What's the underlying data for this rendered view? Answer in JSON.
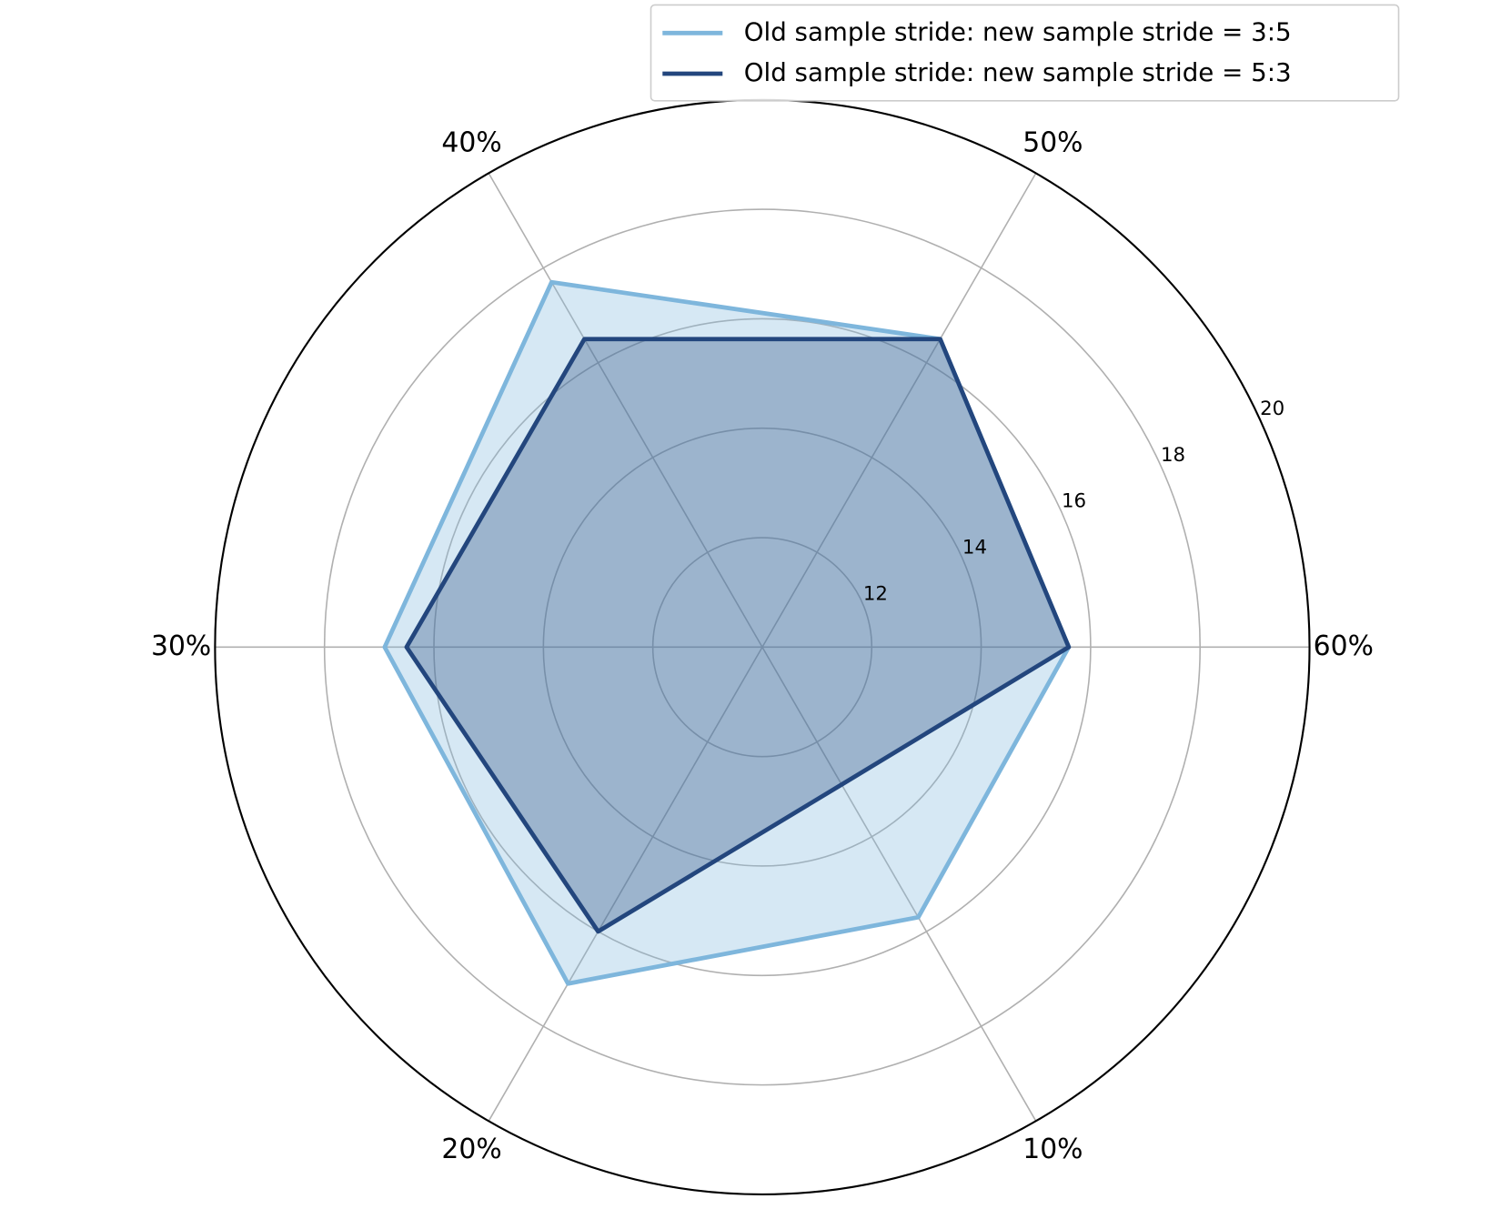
{
  "chart_data": {
    "type": "radar",
    "categories": [
      "10%",
      "20%",
      "30%",
      "40%",
      "50%",
      "60%"
    ],
    "series": [
      {
        "name": "Old sample stride: new sample stride = 3:5",
        "color": "#7eb6dc",
        "values": [
          15.7,
          17.1,
          16.9,
          17.7,
          16.5,
          15.6
        ]
      },
      {
        "name": "Old sample stride: new sample stride = 5:3",
        "color": "#23467d",
        "values": [
          12.9,
          16.0,
          16.5,
          16.5,
          16.5,
          15.6
        ]
      }
    ],
    "rlim": [
      10,
      20
    ],
    "rticks": [
      12,
      14,
      16,
      18,
      20
    ],
    "grid": true,
    "legend": "upper right"
  }
}
